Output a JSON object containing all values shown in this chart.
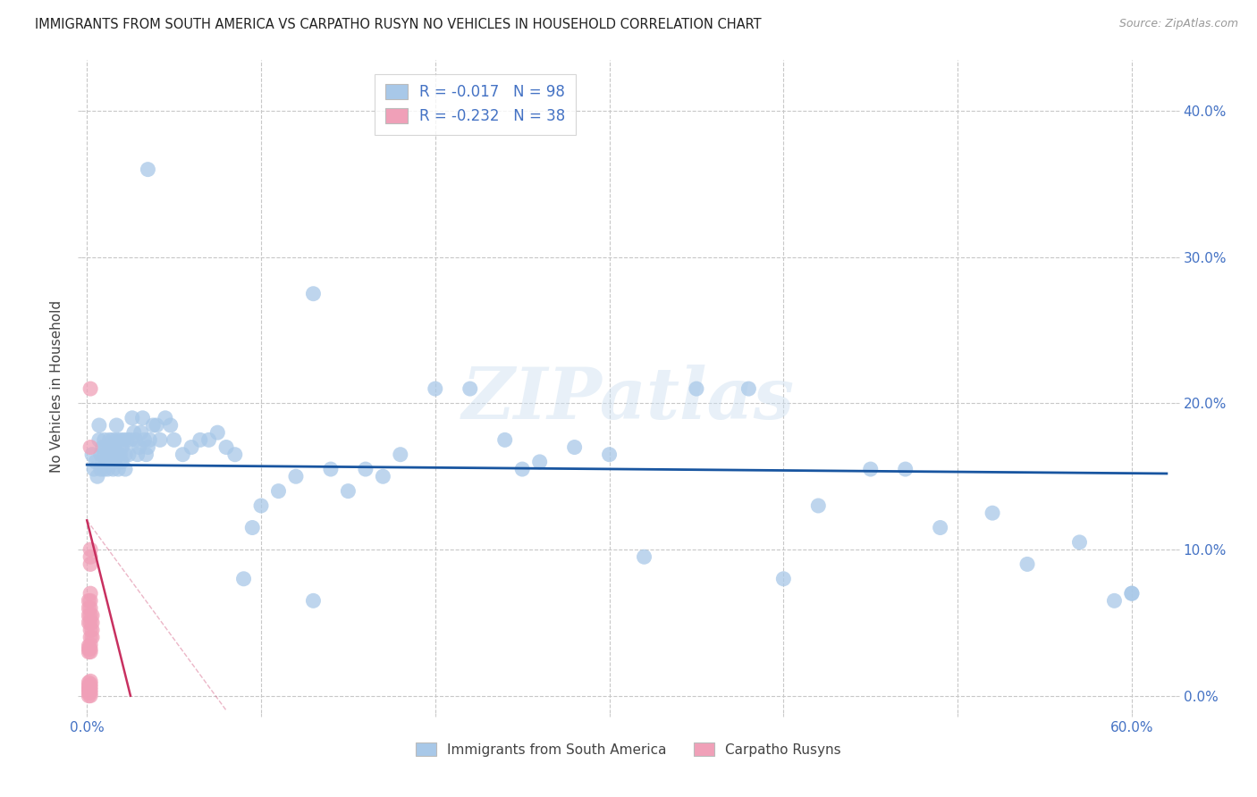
{
  "title": "IMMIGRANTS FROM SOUTH AMERICA VS CARPATHO RUSYN NO VEHICLES IN HOUSEHOLD CORRELATION CHART",
  "source": "Source: ZipAtlas.com",
  "ylabel": "No Vehicles in Household",
  "xlim": [
    -0.003,
    0.625
  ],
  "ylim": [
    -0.012,
    0.435
  ],
  "xticks": [
    0.0,
    0.1,
    0.2,
    0.3,
    0.4,
    0.5,
    0.6
  ],
  "xticklabels": [
    "0.0%",
    "",
    "",
    "",
    "",
    "",
    "60.0%"
  ],
  "yticks": [
    0.0,
    0.1,
    0.2,
    0.3,
    0.4
  ],
  "yticklabels": [
    "0.0%",
    "10.0%",
    "20.0%",
    "30.0%",
    "40.0%"
  ],
  "blue_R": -0.017,
  "blue_N": 98,
  "pink_R": -0.232,
  "pink_N": 38,
  "blue_color": "#a8c8e8",
  "pink_color": "#f0a0b8",
  "blue_line_color": "#1855a0",
  "pink_line_color": "#c83060",
  "axis_color": "#4472c4",
  "grid_color": "#c8c8c8",
  "watermark": "ZIPatlas",
  "blue_scatter_x": [
    0.003,
    0.004,
    0.005,
    0.006,
    0.007,
    0.007,
    0.008,
    0.008,
    0.009,
    0.009,
    0.01,
    0.01,
    0.01,
    0.011,
    0.011,
    0.012,
    0.012,
    0.013,
    0.013,
    0.014,
    0.014,
    0.015,
    0.015,
    0.015,
    0.016,
    0.016,
    0.017,
    0.017,
    0.018,
    0.018,
    0.019,
    0.019,
    0.02,
    0.02,
    0.021,
    0.022,
    0.022,
    0.023,
    0.024,
    0.025,
    0.026,
    0.027,
    0.028,
    0.029,
    0.03,
    0.031,
    0.032,
    0.033,
    0.034,
    0.035,
    0.036,
    0.038,
    0.04,
    0.042,
    0.045,
    0.048,
    0.05,
    0.055,
    0.06,
    0.065,
    0.07,
    0.075,
    0.08,
    0.085,
    0.09,
    0.095,
    0.1,
    0.11,
    0.12,
    0.13,
    0.14,
    0.15,
    0.16,
    0.17,
    0.18,
    0.2,
    0.22,
    0.24,
    0.26,
    0.28,
    0.3,
    0.32,
    0.35,
    0.38,
    0.4,
    0.42,
    0.45,
    0.47,
    0.49,
    0.52,
    0.54,
    0.57,
    0.59,
    0.6,
    0.6,
    0.25,
    0.13,
    0.035
  ],
  "blue_scatter_y": [
    0.165,
    0.155,
    0.16,
    0.15,
    0.175,
    0.185,
    0.165,
    0.155,
    0.17,
    0.16,
    0.175,
    0.165,
    0.155,
    0.17,
    0.16,
    0.165,
    0.155,
    0.175,
    0.165,
    0.17,
    0.16,
    0.175,
    0.165,
    0.155,
    0.17,
    0.16,
    0.175,
    0.185,
    0.165,
    0.155,
    0.175,
    0.165,
    0.17,
    0.16,
    0.175,
    0.165,
    0.155,
    0.175,
    0.165,
    0.175,
    0.19,
    0.18,
    0.175,
    0.165,
    0.17,
    0.18,
    0.19,
    0.175,
    0.165,
    0.17,
    0.175,
    0.185,
    0.185,
    0.175,
    0.19,
    0.185,
    0.175,
    0.165,
    0.17,
    0.175,
    0.175,
    0.18,
    0.17,
    0.165,
    0.08,
    0.115,
    0.13,
    0.14,
    0.15,
    0.065,
    0.155,
    0.14,
    0.155,
    0.15,
    0.165,
    0.21,
    0.21,
    0.175,
    0.16,
    0.17,
    0.165,
    0.095,
    0.21,
    0.21,
    0.08,
    0.13,
    0.155,
    0.155,
    0.115,
    0.125,
    0.09,
    0.105,
    0.065,
    0.07,
    0.07,
    0.155,
    0.275,
    0.36
  ],
  "pink_scatter_x": [
    0.001,
    0.001,
    0.001,
    0.001,
    0.001,
    0.001,
    0.001,
    0.001,
    0.001,
    0.001,
    0.001,
    0.001,
    0.001,
    0.002,
    0.002,
    0.002,
    0.002,
    0.002,
    0.002,
    0.002,
    0.002,
    0.002,
    0.002,
    0.002,
    0.002,
    0.002,
    0.002,
    0.002,
    0.002,
    0.002,
    0.002,
    0.002,
    0.002,
    0.002,
    0.003,
    0.003,
    0.003,
    0.003
  ],
  "pink_scatter_y": [
    0.0,
    0.002,
    0.004,
    0.005,
    0.007,
    0.009,
    0.03,
    0.032,
    0.034,
    0.05,
    0.055,
    0.06,
    0.065,
    0.0,
    0.002,
    0.004,
    0.006,
    0.008,
    0.01,
    0.03,
    0.032,
    0.035,
    0.04,
    0.045,
    0.05,
    0.055,
    0.06,
    0.065,
    0.07,
    0.09,
    0.095,
    0.1,
    0.17,
    0.21,
    0.04,
    0.045,
    0.05,
    0.055
  ]
}
